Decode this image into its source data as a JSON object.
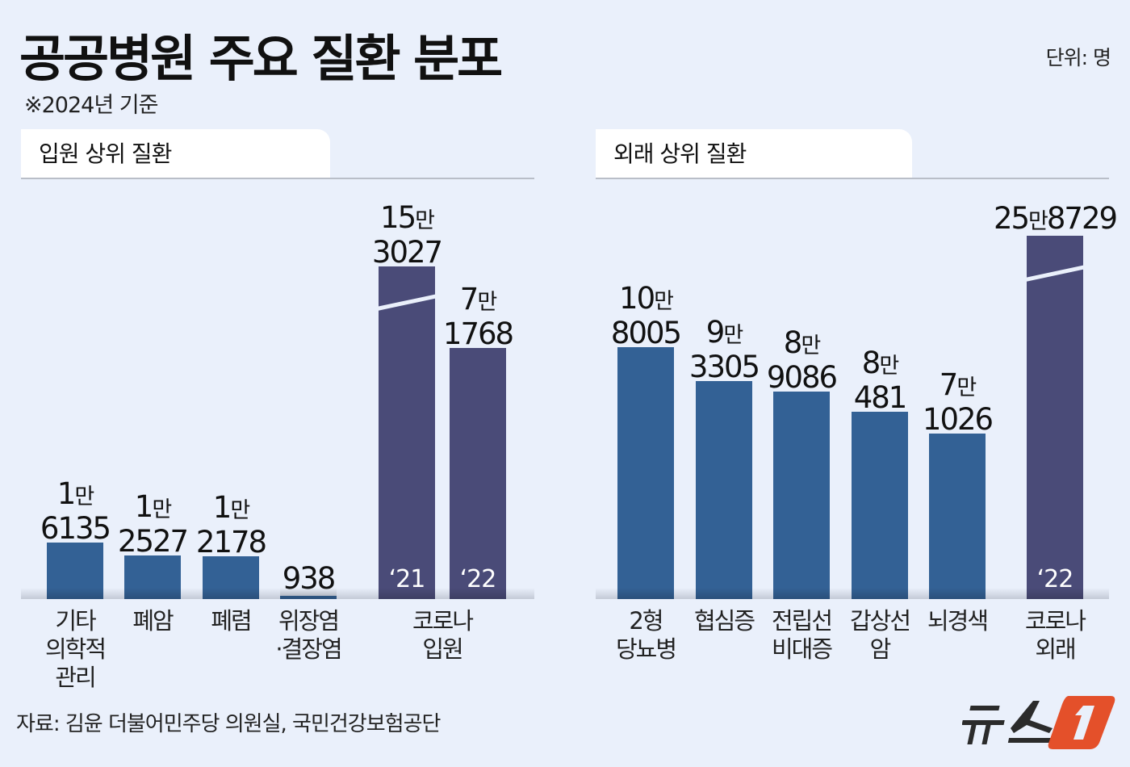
{
  "title": "공공병원 주요 질환 분포",
  "subtitle": "※2024년 기준",
  "unit": "단위: 명",
  "source": "자료: 김윤 더불어민주당 의원실, 국민건강보험공단",
  "logo_text": "뉴스1",
  "colors": {
    "background": "#eaf0fb",
    "regular_bar": "#336195",
    "covid_bar": "#4a4b78",
    "logo_orange": "#e4502a"
  },
  "chart_data": [
    {
      "type": "bar",
      "title": "입원 상위 질환",
      "categories": [
        "기타\n의학적\n관리",
        "폐암",
        "폐렴",
        "위장염\n·결장염",
        "코로나\n입원"
      ],
      "bars": [
        {
          "category": "기타\n의학적\n관리",
          "value": 16135,
          "label_man": "1",
          "label_unit": "만",
          "label_rest": "6135",
          "kind": "regular"
        },
        {
          "category": "폐암",
          "value": 12527,
          "label_man": "1",
          "label_unit": "만",
          "label_rest": "2527",
          "kind": "regular"
        },
        {
          "category": "폐렴",
          "value": 12178,
          "label_man": "1",
          "label_unit": "만",
          "label_rest": "2178",
          "kind": "regular"
        },
        {
          "category": "위장염\n·결장염",
          "value": 938,
          "label_man": "",
          "label_unit": "",
          "label_rest": "938",
          "kind": "regular"
        },
        {
          "category": "코로나\n입원",
          "value": 153027,
          "label_man": "15",
          "label_unit": "만",
          "label_rest": "3027",
          "kind": "covid",
          "year": "‘21",
          "axis_break": true
        },
        {
          "category": "코로나\n입원",
          "value": 71768,
          "label_man": "7",
          "label_unit": "만",
          "label_rest": "1768",
          "kind": "covid",
          "year": "‘22"
        }
      ]
    },
    {
      "type": "bar",
      "title": "외래 상위 질환",
      "categories": [
        "2형\n당뇨병",
        "협심증",
        "전립선\n비대증",
        "갑상선\n암",
        "뇌경색",
        "코로나\n외래"
      ],
      "bars": [
        {
          "category": "2형\n당뇨병",
          "value": 108005,
          "label_man": "10",
          "label_unit": "만",
          "label_rest": "8005",
          "kind": "regular"
        },
        {
          "category": "협심증",
          "value": 93305,
          "label_man": "9",
          "label_unit": "만",
          "label_rest": "3305",
          "kind": "regular"
        },
        {
          "category": "전립선\n비대증",
          "value": 89086,
          "label_man": "8",
          "label_unit": "만",
          "label_rest": "9086",
          "kind": "regular"
        },
        {
          "category": "갑상선\n암",
          "value": 80481,
          "label_man": "8",
          "label_unit": "만",
          "label_rest": "481",
          "kind": "regular"
        },
        {
          "category": "뇌경색",
          "value": 71026,
          "label_man": "7",
          "label_unit": "만",
          "label_rest": "1026",
          "kind": "regular"
        },
        {
          "category": "코로나\n외래",
          "value": 258729,
          "label_man": "25",
          "label_unit": "만",
          "label_rest": "8729",
          "kind": "covid",
          "year": "‘22",
          "axis_break": true,
          "single_line": true
        }
      ]
    }
  ]
}
